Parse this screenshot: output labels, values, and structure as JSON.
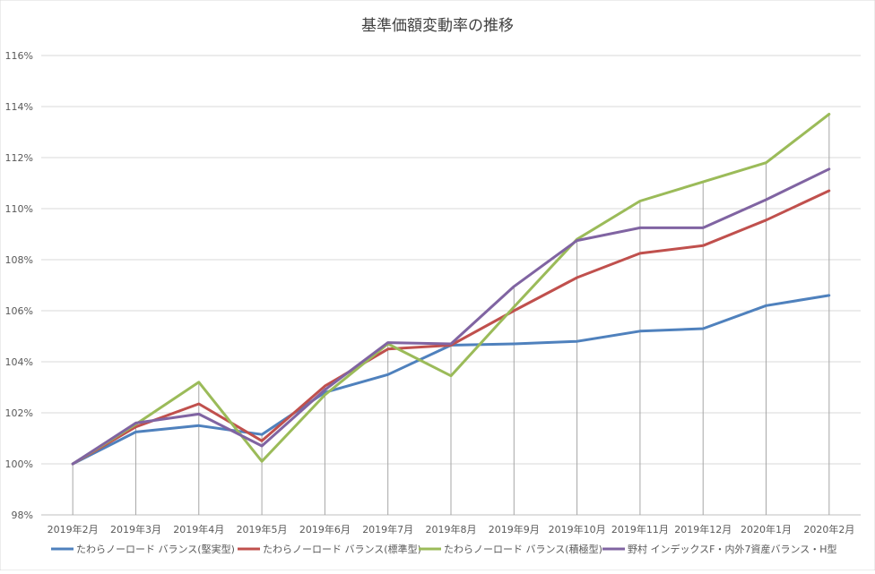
{
  "chart_data": {
    "type": "line",
    "title": "基準価額変動率の推移",
    "xlabel": "",
    "ylabel": "",
    "ylim": [
      98,
      116
    ],
    "ytick_step": 2,
    "ytick_suffix": "%",
    "grid": true,
    "legend_position": "bottom",
    "categories": [
      "2019年2月",
      "2019年3月",
      "2019年4月",
      "2019年5月",
      "2019年6月",
      "2019年7月",
      "2019年8月",
      "2019年9月",
      "2019年10月",
      "2019年11月",
      "2019年12月",
      "2020年1月",
      "2020年2月"
    ],
    "series": [
      {
        "name": "たわらノーロード バランス(堅実型)",
        "color": "#4f81bd",
        "values": [
          100.0,
          101.25,
          101.5,
          101.15,
          102.8,
          103.5,
          104.65,
          104.7,
          104.8,
          105.2,
          105.3,
          106.2,
          106.6
        ]
      },
      {
        "name": "たわらノーロード バランス(標準型)",
        "color": "#c0504d",
        "values": [
          100.0,
          101.45,
          102.35,
          100.9,
          103.05,
          104.5,
          104.65,
          106.0,
          107.3,
          108.25,
          108.55,
          109.55,
          110.7
        ]
      },
      {
        "name": "たわらノーロード バランス(積極型)",
        "color": "#9bbb59",
        "values": [
          100.0,
          101.55,
          103.2,
          100.1,
          102.7,
          104.7,
          103.45,
          106.15,
          108.8,
          110.3,
          111.05,
          111.8,
          113.7
        ]
      },
      {
        "name": "野村 インデックスF・内外7資産バランス・H型",
        "color": "#8064a2",
        "values": [
          100.0,
          101.6,
          101.95,
          100.7,
          102.9,
          104.75,
          104.7,
          106.95,
          108.75,
          109.25,
          109.25,
          110.35,
          111.55
        ]
      }
    ]
  }
}
